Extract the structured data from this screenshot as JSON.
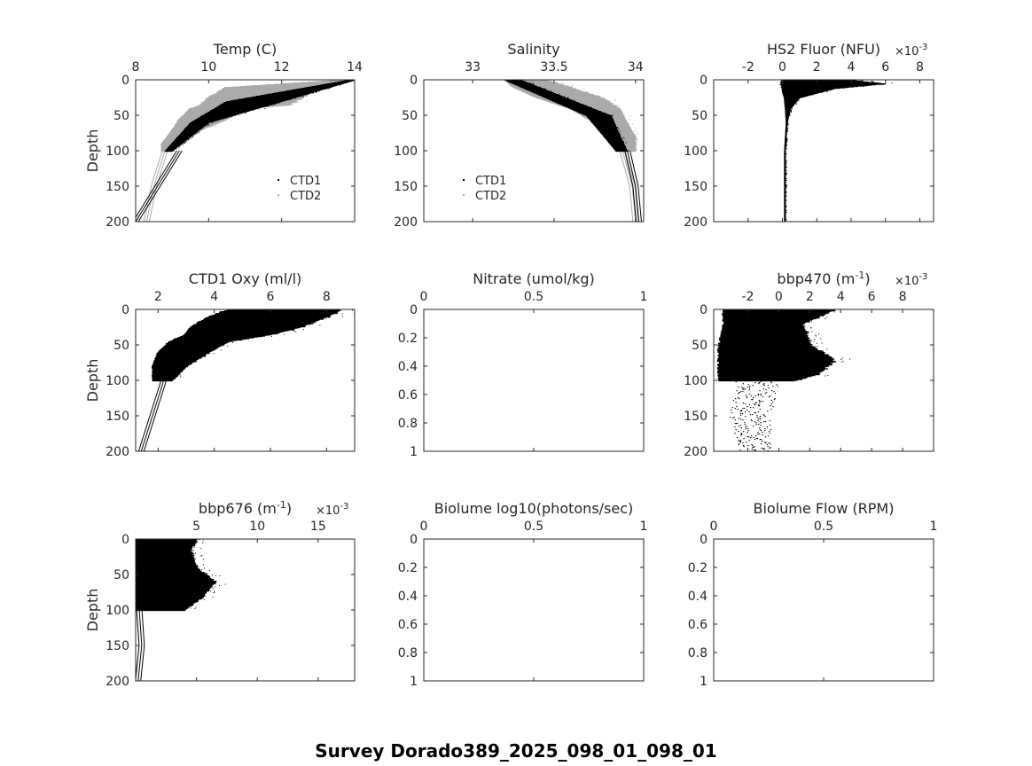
{
  "figure_title": "Survey Dorado389_2025_098_01_098_01",
  "colors": {
    "ctd1": "#000000",
    "ctd2": "#aaaaaa",
    "axis": "#262626"
  },
  "chart_data": [
    {
      "id": "temp",
      "type": "scatter",
      "title": "Temp (C)",
      "ylabel": "Depth",
      "xlim": [
        8,
        14
      ],
      "ylim": [
        0,
        200
      ],
      "xticks": [
        8,
        10,
        12,
        14
      ],
      "xtick_labels": [
        "8",
        "10",
        "12",
        "14"
      ],
      "yticks": [
        0,
        50,
        100,
        150,
        200
      ],
      "ytick_labels": [
        "0",
        "50",
        "100",
        "150",
        "200"
      ],
      "legend": [
        "CTD1",
        "CTD2"
      ],
      "series": [
        {
          "name": "CTD2",
          "color": "#aaaaaa",
          "profile": [
            [
              0,
              13.5,
              14.0
            ],
            [
              10,
              10.5,
              13.0
            ],
            [
              25,
              10.0,
              12.5
            ],
            [
              35,
              9.8,
              12.2
            ],
            [
              40,
              9.5,
              11.0
            ],
            [
              55,
              9.2,
              10.5
            ],
            [
              70,
              9.0,
              9.8
            ],
            [
              90,
              8.7,
              9.3
            ],
            [
              100,
              8.7,
              9.0
            ]
          ],
          "deep": [
            [
              100,
              8.8
            ],
            [
              150,
              8.5
            ],
            [
              200,
              8.3
            ]
          ]
        },
        {
          "name": "CTD1",
          "color": "#000000",
          "profile": [
            [
              0,
              13.8,
              14.0
            ],
            [
              30,
              10.5,
              12.0
            ],
            [
              60,
              9.5,
              10.0
            ],
            [
              100,
              8.8,
              9.0
            ]
          ],
          "deep": [
            [
              100,
              9.2
            ],
            [
              150,
              8.6
            ],
            [
              200,
              8.0
            ]
          ]
        }
      ]
    },
    {
      "id": "salinity",
      "type": "scatter",
      "title": "Salinity",
      "ylabel": "",
      "xlim": [
        32.7,
        34.05
      ],
      "ylim": [
        0,
        200
      ],
      "xticks": [
        33,
        33.5,
        34
      ],
      "xtick_labels": [
        "33",
        "33.5",
        "34"
      ],
      "yticks": [
        0,
        50,
        100,
        150,
        200
      ],
      "ytick_labels": [
        "0",
        "50",
        "100",
        "150",
        "200"
      ],
      "legend": [
        "CTD1",
        "CTD2"
      ],
      "series": [
        {
          "name": "CTD2",
          "color": "#aaaaaa",
          "profile": [
            [
              0,
              33.2,
              33.45
            ],
            [
              10,
              33.25,
              33.6
            ],
            [
              25,
              33.4,
              33.8
            ],
            [
              40,
              33.6,
              33.9
            ],
            [
              60,
              33.75,
              33.95
            ],
            [
              80,
              33.85,
              34.0
            ],
            [
              100,
              33.9,
              34.0
            ]
          ],
          "deep": [
            [
              100,
              33.92
            ],
            [
              150,
              33.98
            ],
            [
              200,
              34.0
            ]
          ]
        },
        {
          "name": "CTD1",
          "color": "#000000",
          "profile": [
            [
              0,
              33.2,
              33.3
            ],
            [
              50,
              33.7,
              33.85
            ],
            [
              100,
              33.88,
              33.95
            ]
          ],
          "deep": [
            [
              100,
              33.95
            ],
            [
              150,
              34.0
            ],
            [
              200,
              34.02
            ]
          ]
        }
      ]
    },
    {
      "id": "hs2_fluor",
      "type": "scatter",
      "title": "HS2 Fluor (NFU)",
      "ylabel": "",
      "exponent": "×10",
      "exponent_power": "-3",
      "xlim": [
        -4,
        8.8
      ],
      "ylim": [
        0,
        200
      ],
      "xticks": [
        -2,
        0,
        2,
        4,
        6,
        8
      ],
      "xtick_labels": [
        "-2",
        "0",
        "2",
        "4",
        "6",
        "8"
      ],
      "yticks": [
        0,
        50,
        100,
        150,
        200
      ],
      "ytick_labels": [
        "0",
        "50",
        "100",
        "150",
        "200"
      ],
      "series": [
        {
          "name": "CTD1",
          "color": "#000000",
          "profile": [
            [
              0,
              0,
              4
            ],
            [
              5,
              0,
              6
            ],
            [
              12,
              0,
              3
            ],
            [
              25,
              0.1,
              1.0
            ],
            [
              40,
              0.15,
              0.5
            ],
            [
              60,
              0.2,
              0.3
            ],
            [
              100,
              0.1,
              0.2
            ],
            [
              200,
              0.1,
              0.2
            ]
          ]
        }
      ]
    },
    {
      "id": "ctd1_oxy",
      "type": "scatter",
      "title": "CTD1 Oxy (ml/l)",
      "ylabel": "Depth",
      "xlim": [
        1.2,
        9
      ],
      "ylim": [
        0,
        200
      ],
      "xticks": [
        2,
        4,
        6,
        8
      ],
      "xtick_labels": [
        "2",
        "4",
        "6",
        "8"
      ],
      "yticks": [
        0,
        50,
        100,
        150,
        200
      ],
      "ytick_labels": [
        "0",
        "50",
        "100",
        "150",
        "200"
      ],
      "series": [
        {
          "name": "CTD1",
          "color": "#000000",
          "profile": [
            [
              0,
              4.5,
              8.5
            ],
            [
              10,
              3.8,
              8.0
            ],
            [
              25,
              3.2,
              7.0
            ],
            [
              35,
              3.0,
              6.0
            ],
            [
              45,
              2.4,
              4.5
            ],
            [
              60,
              2.0,
              3.8
            ],
            [
              80,
              1.8,
              3.0
            ],
            [
              100,
              1.8,
              2.5
            ]
          ],
          "deep": [
            [
              100,
              2.2
            ],
            [
              150,
              1.8
            ],
            [
              200,
              1.4
            ]
          ]
        }
      ]
    },
    {
      "id": "nitrate",
      "type": "scatter",
      "title": "Nitrate (umol/kg)",
      "ylabel": "",
      "xlim": [
        0,
        1
      ],
      "ylim": [
        0,
        1
      ],
      "xticks": [
        0,
        0.5,
        1
      ],
      "xtick_labels": [
        "0",
        "0.5",
        "1"
      ],
      "yticks": [
        0,
        0.2,
        0.4,
        0.6,
        0.8,
        1
      ],
      "ytick_labels": [
        "0",
        "0.2",
        "0.4",
        "0.6",
        "0.8",
        "1"
      ],
      "series": []
    },
    {
      "id": "bbp470",
      "type": "scatter",
      "title": "bbp470 (m",
      "title_sup": "-1",
      "title_end": ")",
      "ylabel": "",
      "exponent": "×10",
      "exponent_power": "-3",
      "xlim": [
        -4.2,
        10
      ],
      "ylim": [
        0,
        200
      ],
      "xticks": [
        -2,
        0,
        2,
        4,
        6,
        8
      ],
      "xtick_labels": [
        "-2",
        "0",
        "2",
        "4",
        "6",
        "8"
      ],
      "yticks": [
        0,
        50,
        100,
        150,
        200
      ],
      "ytick_labels": [
        "0",
        "50",
        "100",
        "150",
        "200"
      ],
      "series": [
        {
          "name": "CTD1",
          "color": "#000000",
          "profile": [
            [
              0,
              -3.5,
              3.5
            ],
            [
              20,
              -3.5,
              1.5
            ],
            [
              50,
              -3.8,
              2.0
            ],
            [
              70,
              -3.8,
              3.5
            ],
            [
              90,
              -3.8,
              2.5
            ],
            [
              100,
              -3.8,
              1.0
            ]
          ],
          "deep": [
            [
              100,
              -3,
              0
            ],
            [
              150,
              -3.2,
              -0.5
            ],
            [
              200,
              -2.5,
              -0.5
            ]
          ]
        }
      ]
    },
    {
      "id": "bbp676",
      "type": "scatter",
      "title": "bbp676 (m",
      "title_sup": "-1",
      "title_end": ")",
      "ylabel": "Depth",
      "exponent": "×10",
      "exponent_power": "-3",
      "xlim": [
        0,
        18
      ],
      "ylim": [
        0,
        200
      ],
      "xticks": [
        5,
        10,
        15
      ],
      "xtick_labels": [
        "5",
        "10",
        "15"
      ],
      "yticks": [
        0,
        50,
        100,
        150,
        200
      ],
      "ytick_labels": [
        "0",
        "50",
        "100",
        "150",
        "200"
      ],
      "series": [
        {
          "name": "CTD1",
          "color": "#000000",
          "profile": [
            [
              0,
              0,
              5
            ],
            [
              15,
              0,
              4.5
            ],
            [
              40,
              0,
              5.0
            ],
            [
              60,
              0,
              6.5
            ],
            [
              80,
              0,
              5.5
            ],
            [
              100,
              0,
              4.0
            ]
          ],
          "deep": [
            [
              100,
              0.3
            ],
            [
              150,
              0.5
            ],
            [
              200,
              0.2
            ]
          ]
        }
      ]
    },
    {
      "id": "biolume_log",
      "type": "scatter",
      "title": "Biolume log10(photons/sec)",
      "ylabel": "",
      "xlim": [
        0,
        1
      ],
      "ylim": [
        0,
        1
      ],
      "xticks": [
        0,
        0.5,
        1
      ],
      "xtick_labels": [
        "0",
        "0.5",
        "1"
      ],
      "yticks": [
        0,
        0.2,
        0.4,
        0.6,
        0.8,
        1
      ],
      "ytick_labels": [
        "0",
        "0.2",
        "0.4",
        "0.6",
        "0.8",
        "1"
      ],
      "series": []
    },
    {
      "id": "biolume_flow",
      "type": "scatter",
      "title": "Biolume Flow (RPM)",
      "ylabel": "",
      "xlim": [
        0,
        1
      ],
      "ylim": [
        0,
        1
      ],
      "xticks": [
        0,
        0.5,
        1
      ],
      "xtick_labels": [
        "0",
        "0.5",
        "1"
      ],
      "yticks": [
        0,
        0.2,
        0.4,
        0.6,
        0.8,
        1
      ],
      "ytick_labels": [
        "0",
        "0.2",
        "0.4",
        "0.6",
        "0.8",
        "1"
      ],
      "series": []
    }
  ]
}
